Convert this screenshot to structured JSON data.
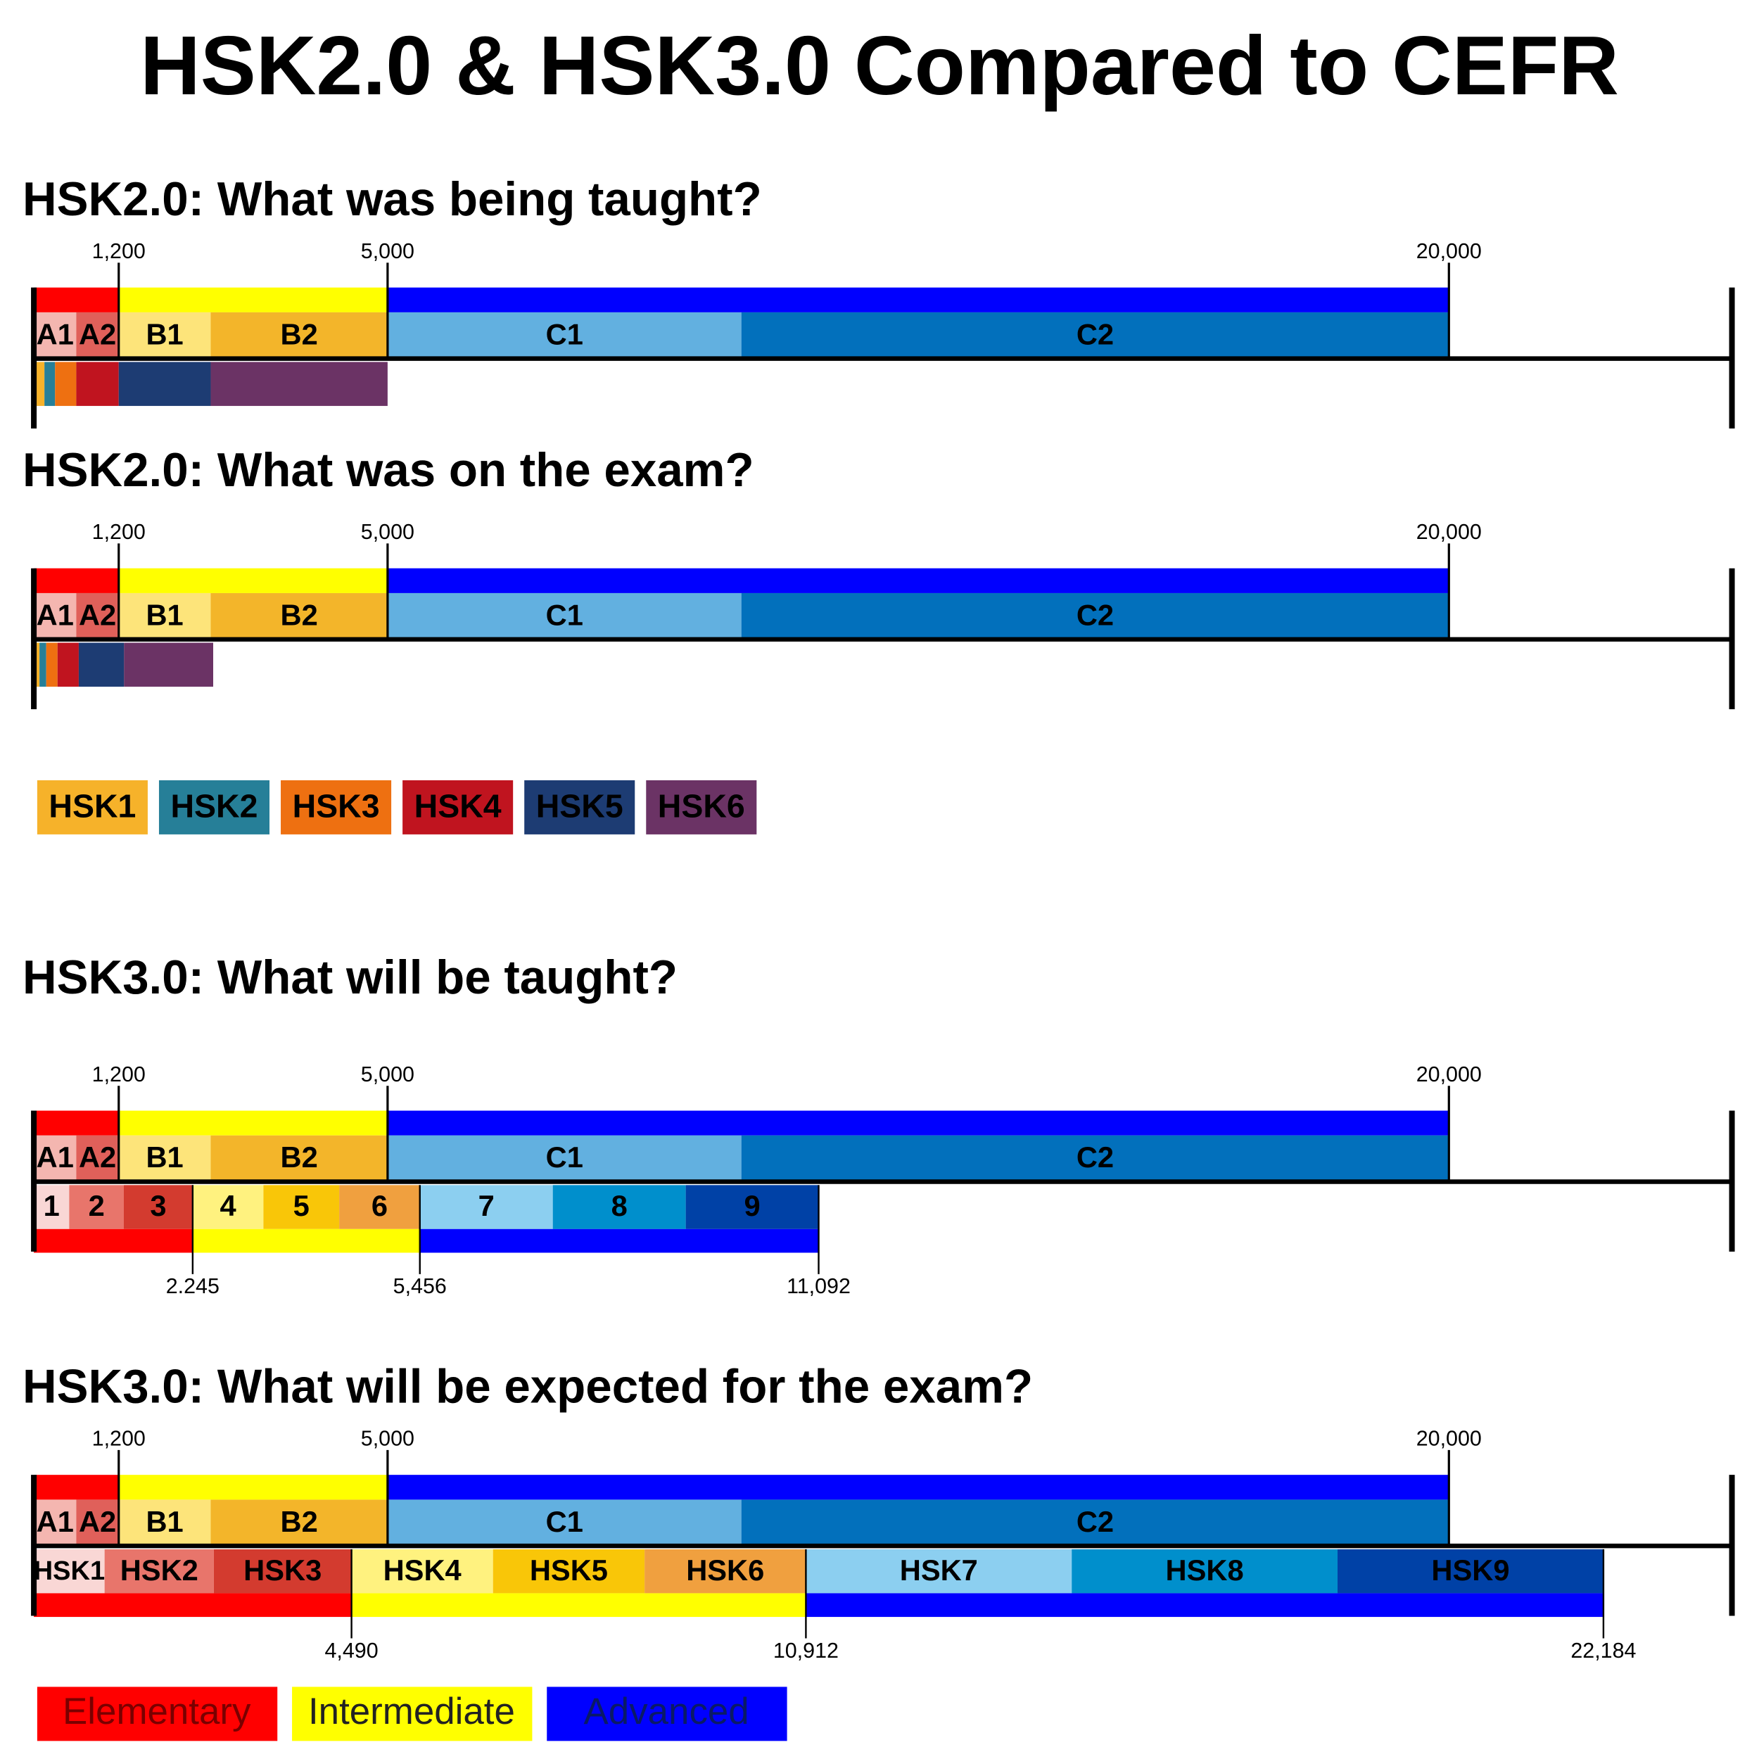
{
  "title": "HSK2.0 & HSK3.0 Compared to CEFR",
  "hsk2_legend": [
    {
      "name": "HSK1",
      "color": "#f6b22a"
    },
    {
      "name": "HSK2",
      "color": "#267f98"
    },
    {
      "name": "HSK3",
      "color": "#ee7011"
    },
    {
      "name": "HSK4",
      "color": "#c0141f"
    },
    {
      "name": "HSK5",
      "color": "#1d3c73"
    },
    {
      "name": "HSK6",
      "color": "#6b3365"
    }
  ],
  "band_legend": [
    {
      "name": "Elementary",
      "color": "#ff0000"
    },
    {
      "name": "Intermediate",
      "color": "#ffff00"
    },
    {
      "name": "Advanced",
      "color": "#0000ff"
    }
  ],
  "chart_data": [
    {
      "type": "stacked-hbar",
      "title": "HSK2.0: What was being taught?",
      "xlim": [
        0,
        24000
      ],
      "xticks": [
        {
          "value": 1200,
          "label": "1,200"
        },
        {
          "value": 5000,
          "label": "5,000"
        },
        {
          "value": 20000,
          "label": "20,000"
        }
      ],
      "rows": [
        {
          "colors": [
            "#ff0000",
            "#ffff00",
            "#0000ff"
          ],
          "values": [
            1200,
            3800,
            15000
          ]
        },
        {
          "labels": [
            "A1",
            "A2",
            "B1",
            "B2",
            "C1",
            "C2"
          ],
          "colors": [
            "#f4b6b0",
            "#e0605a",
            "#fde47a",
            "#f3b52a",
            "#62b0e0",
            "#0270bc"
          ],
          "values": [
            600,
            600,
            1300,
            2500,
            5000,
            10000
          ]
        },
        {
          "colors": [
            "#f6b22a",
            "#267f98",
            "#ee7011",
            "#c0141f",
            "#1d3c73",
            "#6b3365"
          ],
          "values": [
            150,
            150,
            300,
            600,
            1300,
            2500
          ]
        }
      ]
    },
    {
      "type": "stacked-hbar",
      "title": "HSK2.0: What was on the exam?",
      "xlim": [
        0,
        24000
      ],
      "xticks": [
        {
          "value": 1200,
          "label": "1,200"
        },
        {
          "value": 5000,
          "label": "5,000"
        },
        {
          "value": 20000,
          "label": "20,000"
        }
      ],
      "rows": [
        {
          "colors": [
            "#ff0000",
            "#ffff00",
            "#0000ff"
          ],
          "values": [
            1200,
            3800,
            15000
          ]
        },
        {
          "labels": [
            "A1",
            "A2",
            "B1",
            "B2",
            "C1",
            "C2"
          ],
          "colors": [
            "#f4b6b0",
            "#e0605a",
            "#fde47a",
            "#f3b52a",
            "#62b0e0",
            "#0270bc"
          ],
          "values": [
            600,
            600,
            1300,
            2500,
            5000,
            10000
          ]
        },
        {
          "colors": [
            "#f6b22a",
            "#267f98",
            "#ee7011",
            "#c0141f",
            "#1d3c73",
            "#6b3365"
          ],
          "values": [
            80,
            95,
            160,
            300,
            640,
            1260
          ]
        }
      ]
    },
    {
      "type": "stacked-hbar",
      "title": "HSK3.0: What will be taught?",
      "xlim": [
        0,
        24000
      ],
      "xticks": [
        {
          "value": 1200,
          "label": "1,200"
        },
        {
          "value": 5000,
          "label": "5,000"
        },
        {
          "value": 20000,
          "label": "20,000"
        }
      ],
      "lower_ticks": [
        {
          "value": 2245,
          "label": "2.245"
        },
        {
          "value": 5456,
          "label": "5,456"
        },
        {
          "value": 11092,
          "label": "11,092"
        }
      ],
      "rows": [
        {
          "colors": [
            "#ff0000",
            "#ffff00",
            "#0000ff"
          ],
          "values": [
            1200,
            3800,
            15000
          ]
        },
        {
          "labels": [
            "A1",
            "A2",
            "B1",
            "B2",
            "C1",
            "C2"
          ],
          "colors": [
            "#f4b6b0",
            "#e0605a",
            "#fde47a",
            "#f3b52a",
            "#62b0e0",
            "#0270bc"
          ],
          "values": [
            600,
            600,
            1300,
            2500,
            5000,
            10000
          ]
        },
        {
          "labels": [
            "1",
            "2",
            "3",
            "4",
            "5",
            "6",
            "7",
            "8",
            "9"
          ],
          "colors": [
            "#f9d7d5",
            "#e8756b",
            "#d33b2f",
            "#fff27f",
            "#f9c608",
            "#f0a03f",
            "#8ccff0",
            "#008fcc",
            "#0041a6"
          ],
          "values": [
            500,
            772,
            973,
            1000,
            1071,
            1140,
            1879,
            1879,
            1878
          ]
        },
        {
          "colors": [
            "#ff0000",
            "#ffff00",
            "#0000ff"
          ],
          "values": [
            2245,
            3211,
            5636
          ]
        }
      ]
    },
    {
      "type": "stacked-hbar",
      "title": "HSK3.0: What will be expected for the exam?",
      "xlim": [
        0,
        24000
      ],
      "xticks": [
        {
          "value": 1200,
          "label": "1,200"
        },
        {
          "value": 5000,
          "label": "5,000"
        },
        {
          "value": 20000,
          "label": "20,000"
        }
      ],
      "lower_ticks": [
        {
          "value": 4490,
          "label": "4,490"
        },
        {
          "value": 10912,
          "label": "10,912"
        },
        {
          "value": 22184,
          "label": "22,184"
        }
      ],
      "rows": [
        {
          "colors": [
            "#ff0000",
            "#ffff00",
            "#0000ff"
          ],
          "values": [
            1200,
            3800,
            15000
          ]
        },
        {
          "labels": [
            "A1",
            "A2",
            "B1",
            "B2",
            "C1",
            "C2"
          ],
          "colors": [
            "#f4b6b0",
            "#e0605a",
            "#fde47a",
            "#f3b52a",
            "#62b0e0",
            "#0270bc"
          ],
          "values": [
            600,
            600,
            1300,
            2500,
            5000,
            10000
          ]
        },
        {
          "labels": [
            "HSK1",
            "HSK2",
            "HSK3",
            "HSK4",
            "HSK5",
            "HSK6",
            "HSK7",
            "HSK8",
            "HSK9"
          ],
          "colors": [
            "#f9d7d5",
            "#e8756b",
            "#d33b2f",
            "#fff27f",
            "#f9c608",
            "#f0a03f",
            "#8ccff0",
            "#008fcc",
            "#0041a6"
          ],
          "values": [
            1000,
            1544,
            1946,
            2000,
            2142,
            2280,
            3757,
            3757,
            3758
          ]
        },
        {
          "colors": [
            "#ff0000",
            "#ffff00",
            "#0000ff"
          ],
          "values": [
            4490,
            6422,
            11272
          ]
        }
      ]
    }
  ]
}
